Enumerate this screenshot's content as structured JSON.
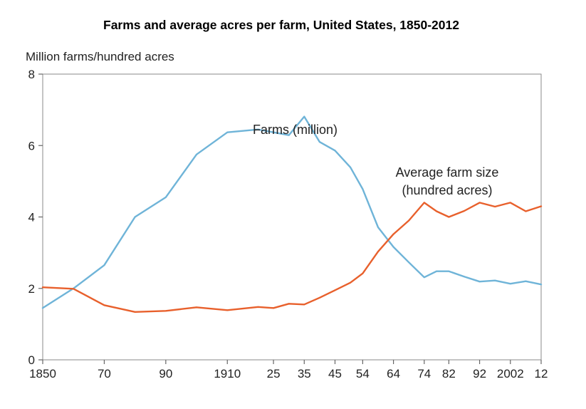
{
  "chart_data": {
    "type": "line",
    "title": "Farms and average acres per farm, United States, 1850-2012",
    "ylabel": "Million farms/hundred acres",
    "xlabel": "",
    "ylim": [
      0,
      8
    ],
    "yticks": [
      0,
      2,
      4,
      6,
      8
    ],
    "xlim": [
      1850,
      2012
    ],
    "x_ticks": [
      {
        "value": 1850,
        "label": "1850"
      },
      {
        "value": 1870,
        "label": "70"
      },
      {
        "value": 1890,
        "label": "90"
      },
      {
        "value": 1910,
        "label": "1910"
      },
      {
        "value": 1925,
        "label": "25"
      },
      {
        "value": 1935,
        "label": "35"
      },
      {
        "value": 1945,
        "label": "45"
      },
      {
        "value": 1954,
        "label": "54"
      },
      {
        "value": 1964,
        "label": "64"
      },
      {
        "value": 1974,
        "label": "74"
      },
      {
        "value": 1982,
        "label": "82"
      },
      {
        "value": 1992,
        "label": "92"
      },
      {
        "value": 2002,
        "label": "2002"
      },
      {
        "value": 2012,
        "label": "12"
      }
    ],
    "grid": false,
    "series": [
      {
        "name": "Farms (million)",
        "annotation_lines": [
          "Farms (million)"
        ],
        "color": "#6fb4d8",
        "points": [
          [
            1850,
            1.45
          ],
          [
            1860,
            2.0
          ],
          [
            1870,
            2.65
          ],
          [
            1880,
            4.0
          ],
          [
            1890,
            4.55
          ],
          [
            1900,
            5.75
          ],
          [
            1910,
            6.37
          ],
          [
            1920,
            6.45
          ],
          [
            1925,
            6.37
          ],
          [
            1930,
            6.29
          ],
          [
            1935,
            6.81
          ],
          [
            1940,
            6.1
          ],
          [
            1945,
            5.86
          ],
          [
            1950,
            5.39
          ],
          [
            1954,
            4.78
          ],
          [
            1959,
            3.71
          ],
          [
            1964,
            3.16
          ],
          [
            1969,
            2.73
          ],
          [
            1974,
            2.31
          ],
          [
            1978,
            2.48
          ],
          [
            1982,
            2.48
          ],
          [
            1987,
            2.33
          ],
          [
            1992,
            2.19
          ],
          [
            1997,
            2.22
          ],
          [
            2002,
            2.13
          ],
          [
            2007,
            2.2
          ],
          [
            2012,
            2.11
          ]
        ]
      },
      {
        "name": "Average farm size (hundred acres)",
        "annotation_lines": [
          "Average farm size",
          "(hundred acres)"
        ],
        "color": "#e8602c",
        "points": [
          [
            1850,
            2.03
          ],
          [
            1860,
            1.99
          ],
          [
            1870,
            1.53
          ],
          [
            1880,
            1.34
          ],
          [
            1890,
            1.37
          ],
          [
            1900,
            1.47
          ],
          [
            1910,
            1.39
          ],
          [
            1920,
            1.48
          ],
          [
            1925,
            1.45
          ],
          [
            1930,
            1.57
          ],
          [
            1935,
            1.55
          ],
          [
            1940,
            1.74
          ],
          [
            1945,
            1.95
          ],
          [
            1950,
            2.16
          ],
          [
            1954,
            2.42
          ],
          [
            1959,
            3.03
          ],
          [
            1964,
            3.52
          ],
          [
            1969,
            3.9
          ],
          [
            1974,
            4.4
          ],
          [
            1978,
            4.16
          ],
          [
            1982,
            4.0
          ],
          [
            1987,
            4.17
          ],
          [
            1992,
            4.4
          ],
          [
            1997,
            4.29
          ],
          [
            2002,
            4.4
          ],
          [
            2007,
            4.16
          ],
          [
            2012,
            4.3
          ]
        ]
      }
    ]
  }
}
